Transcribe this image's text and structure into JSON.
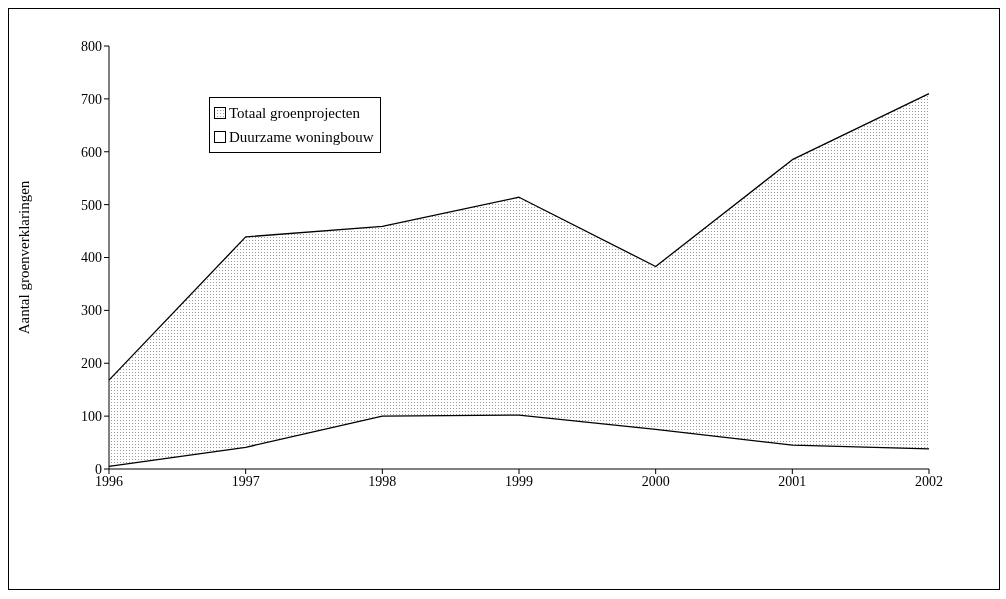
{
  "chart_data": {
    "type": "area",
    "ylabel": "Aantal groenverklaringen",
    "categories": [
      "1996",
      "1997",
      "1998",
      "1999",
      "2000",
      "2001",
      "2002"
    ],
    "series": [
      {
        "name": "Totaal groenprojecten",
        "color": "#9a9a9a",
        "values": [
          168,
          439,
          459,
          514,
          383,
          585,
          710
        ]
      },
      {
        "name": "Duurzame woningbouw",
        "color": "#ffffff",
        "values": [
          5,
          41,
          100,
          102,
          75,
          45,
          38
        ]
      }
    ],
    "ylim": [
      0,
      800
    ],
    "yticks": [
      0,
      100,
      200,
      300,
      400,
      500,
      600,
      700,
      800
    ],
    "grid": false,
    "legend": "top left"
  }
}
